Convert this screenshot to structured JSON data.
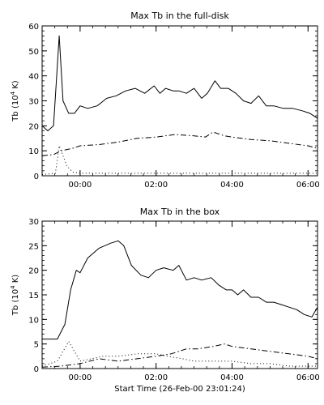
{
  "chart_data": [
    {
      "type": "line",
      "title": "Max Tb in the full-disk",
      "ylabel_main": "Tb (10",
      "ylabel_exp": "4",
      "ylabel_unit": " K)",
      "xlabel": "",
      "xlim": [
        -1.0,
        6.25
      ],
      "ylim": [
        0,
        60
      ],
      "x_ticks": [
        0,
        2,
        4,
        6
      ],
      "x_tick_labels": [
        "00:00",
        "02:00",
        "04:00",
        "06:00"
      ],
      "y_ticks": [
        0,
        10,
        20,
        30,
        40,
        50,
        60
      ],
      "y_tick_labels": [
        "0",
        "10",
        "20",
        "30",
        "40",
        "50",
        "60"
      ],
      "series": [
        {
          "style": "solid",
          "x": [
            -1.0,
            -0.85,
            -0.7,
            -0.55,
            -0.45,
            -0.3,
            -0.15,
            0.0,
            0.2,
            0.45,
            0.7,
            0.95,
            1.2,
            1.45,
            1.7,
            1.95,
            2.1,
            2.25,
            2.45,
            2.6,
            2.8,
            3.0,
            3.2,
            3.35,
            3.55,
            3.7,
            3.9,
            4.1,
            4.3,
            4.5,
            4.7,
            4.9,
            5.1,
            5.35,
            5.6,
            5.85,
            6.05,
            6.25
          ],
          "y": [
            20,
            18,
            20,
            56,
            30,
            25,
            25,
            28,
            27,
            28,
            31,
            32,
            34,
            35,
            33,
            36,
            33,
            35,
            34,
            34,
            33,
            35,
            31,
            33,
            38,
            35,
            35,
            33,
            30,
            29,
            32,
            28,
            28,
            27,
            27,
            26,
            25,
            23
          ]
        },
        {
          "style": "dashdot",
          "x": [
            -1.0,
            -0.7,
            -0.5,
            -0.2,
            0.0,
            0.5,
            1.0,
            1.5,
            2.0,
            2.5,
            3.0,
            3.3,
            3.5,
            3.8,
            4.0,
            4.5,
            5.0,
            5.5,
            6.0,
            6.25
          ],
          "y": [
            8,
            8.5,
            10,
            11,
            12,
            12.5,
            13.5,
            15,
            15.5,
            16.5,
            16,
            15.5,
            17.5,
            16,
            15.5,
            14.5,
            14,
            13,
            12,
            11
          ]
        },
        {
          "style": "dotted",
          "x": [
            -1.0,
            -0.65,
            -0.55,
            -0.45,
            -0.35,
            -0.2,
            0.0,
            1.0,
            2.0,
            3.0,
            4.0,
            5.0,
            6.25
          ],
          "y": [
            0.5,
            1,
            12,
            8,
            4,
            1.5,
            1,
            1,
            1,
            1,
            1,
            1,
            1
          ]
        }
      ]
    },
    {
      "type": "line",
      "title": "Max Tb in the box",
      "ylabel_main": "Tb (10",
      "ylabel_exp": "4",
      "ylabel_unit": " K)",
      "xlabel": "Start Time (26-Feb-00 23:01:24)",
      "xlim": [
        -1.0,
        6.25
      ],
      "ylim": [
        0,
        30
      ],
      "x_ticks": [
        0,
        2,
        4,
        6
      ],
      "x_tick_labels": [
        "00:00",
        "02:00",
        "04:00",
        "06:00"
      ],
      "y_ticks": [
        0,
        5,
        10,
        15,
        20,
        25,
        30
      ],
      "y_tick_labels": [
        "0",
        "5",
        "10",
        "15",
        "20",
        "25",
        "30"
      ],
      "series": [
        {
          "style": "solid",
          "x": [
            -1.0,
            -0.6,
            -0.4,
            -0.25,
            -0.1,
            0.0,
            0.2,
            0.5,
            0.8,
            1.0,
            1.15,
            1.35,
            1.6,
            1.8,
            2.0,
            2.2,
            2.45,
            2.6,
            2.8,
            3.0,
            3.2,
            3.45,
            3.65,
            3.85,
            4.0,
            4.15,
            4.3,
            4.5,
            4.7,
            4.9,
            5.1,
            5.3,
            5.5,
            5.7,
            5.9,
            6.1,
            6.25
          ],
          "y": [
            6,
            6,
            9,
            16,
            20,
            19.5,
            22.5,
            24.5,
            25.5,
            26,
            25,
            21,
            19,
            18.5,
            20,
            20.5,
            20,
            21,
            18,
            18.5,
            18,
            18.5,
            17,
            16,
            16,
            15,
            16,
            14.5,
            14.5,
            13.5,
            13.5,
            13,
            12.5,
            12,
            11,
            10.5,
            12.5
          ]
        },
        {
          "style": "dashdot",
          "x": [
            -1.0,
            -0.5,
            0.0,
            0.5,
            1.0,
            1.5,
            2.0,
            2.4,
            2.8,
            3.1,
            3.5,
            3.8,
            4.0,
            4.5,
            5.0,
            5.5,
            6.0,
            6.25
          ],
          "y": [
            0.3,
            0.5,
            1,
            2,
            1.5,
            2,
            2.5,
            3,
            4,
            4,
            4.5,
            5,
            4.5,
            4,
            3.5,
            3,
            2.5,
            2
          ]
        },
        {
          "style": "dotted",
          "x": [
            -1.0,
            -0.6,
            -0.3,
            -0.15,
            0.0,
            0.3,
            0.6,
            1.0,
            1.5,
            2.0,
            2.3,
            2.7,
            3.0,
            3.5,
            4.0,
            4.5,
            5.0,
            5.5,
            6.0,
            6.25
          ],
          "y": [
            0.5,
            1.5,
            5.5,
            3.5,
            1.5,
            2,
            2.5,
            2.5,
            3,
            3,
            2.5,
            2,
            1.5,
            1.5,
            1.5,
            1,
            1,
            0.5,
            0.5,
            0.5
          ]
        }
      ]
    }
  ]
}
